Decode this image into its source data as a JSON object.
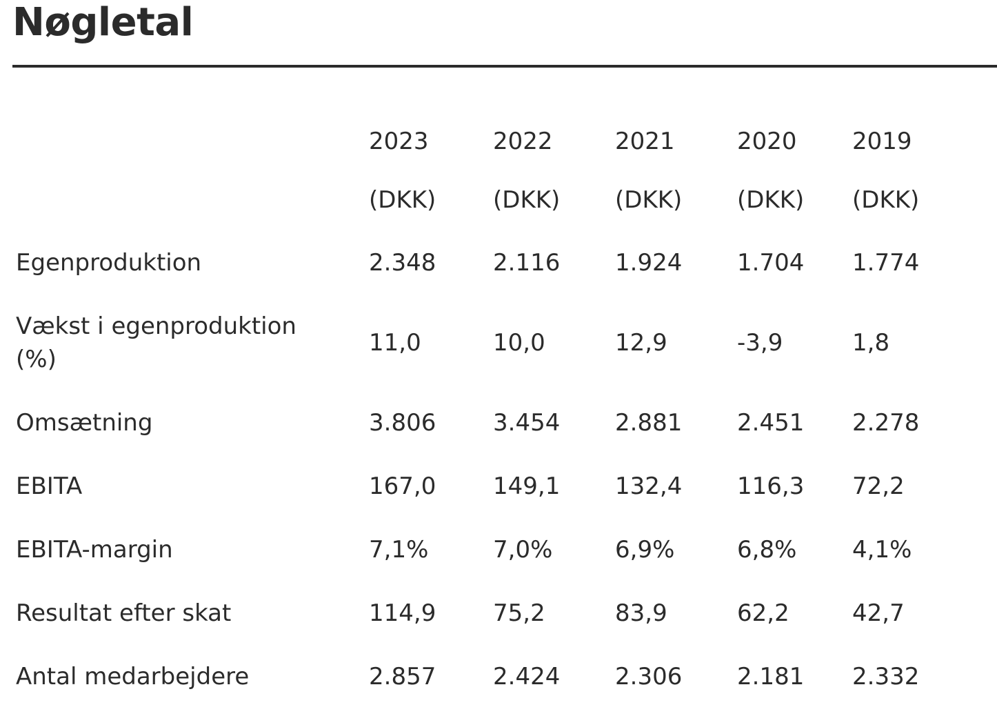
{
  "title": "Nøgletal",
  "table": {
    "years": [
      "2023",
      "2022",
      "2021",
      "2020",
      "2019"
    ],
    "currency": [
      "(DKK)",
      "(DKK)",
      "(DKK)",
      "(DKK)",
      "(DKK)"
    ],
    "rows": [
      {
        "label": "Egenproduktion",
        "values": [
          "2.348",
          "2.116",
          "1.924",
          "1.704",
          "1.774"
        ]
      },
      {
        "label": "Vækst i egenproduktion (%)",
        "values": [
          "11,0",
          "10,0",
          "12,9",
          "-3,9",
          "1,8"
        ]
      },
      {
        "label": "Omsætning",
        "values": [
          "3.806",
          "3.454",
          "2.881",
          "2.451",
          "2.278"
        ]
      },
      {
        "label": "EBITA",
        "values": [
          "167,0",
          "149,1",
          "132,4",
          "116,3",
          "72,2"
        ]
      },
      {
        "label": "EBITA-margin",
        "values": [
          "7,1%",
          "7,0%",
          "6,9%",
          "6,8%",
          "4,1%"
        ]
      },
      {
        "label": "Resultat efter skat",
        "values": [
          "114,9",
          "75,2",
          "83,9",
          "62,2",
          "42,7"
        ]
      },
      {
        "label": "Antal medarbejdere",
        "values": [
          "2.857",
          "2.424",
          "2.306",
          "2.181",
          "2.332"
        ]
      }
    ]
  }
}
